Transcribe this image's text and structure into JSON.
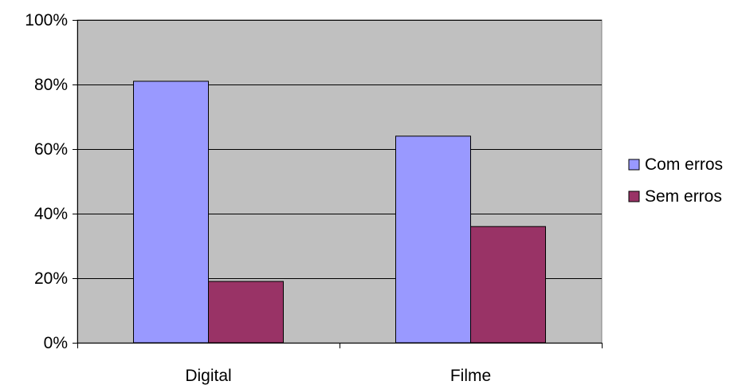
{
  "chart_data": {
    "type": "bar",
    "categories": [
      "Digital",
      "Filme"
    ],
    "series": [
      {
        "name": "Com erros",
        "values": [
          81,
          64
        ],
        "color": "#9999FF"
      },
      {
        "name": "Sem erros",
        "values": [
          19,
          36
        ],
        "color": "#993366"
      }
    ],
    "y_ticks": [
      0,
      20,
      40,
      60,
      80,
      100
    ],
    "y_tick_labels": [
      "0%",
      "20%",
      "40%",
      "60%",
      "80%",
      "100%"
    ],
    "ylim": [
      0,
      100
    ],
    "grid": true,
    "plot_background": "#C0C0C0",
    "gridline_color": "#000000",
    "legend_position": "right"
  }
}
